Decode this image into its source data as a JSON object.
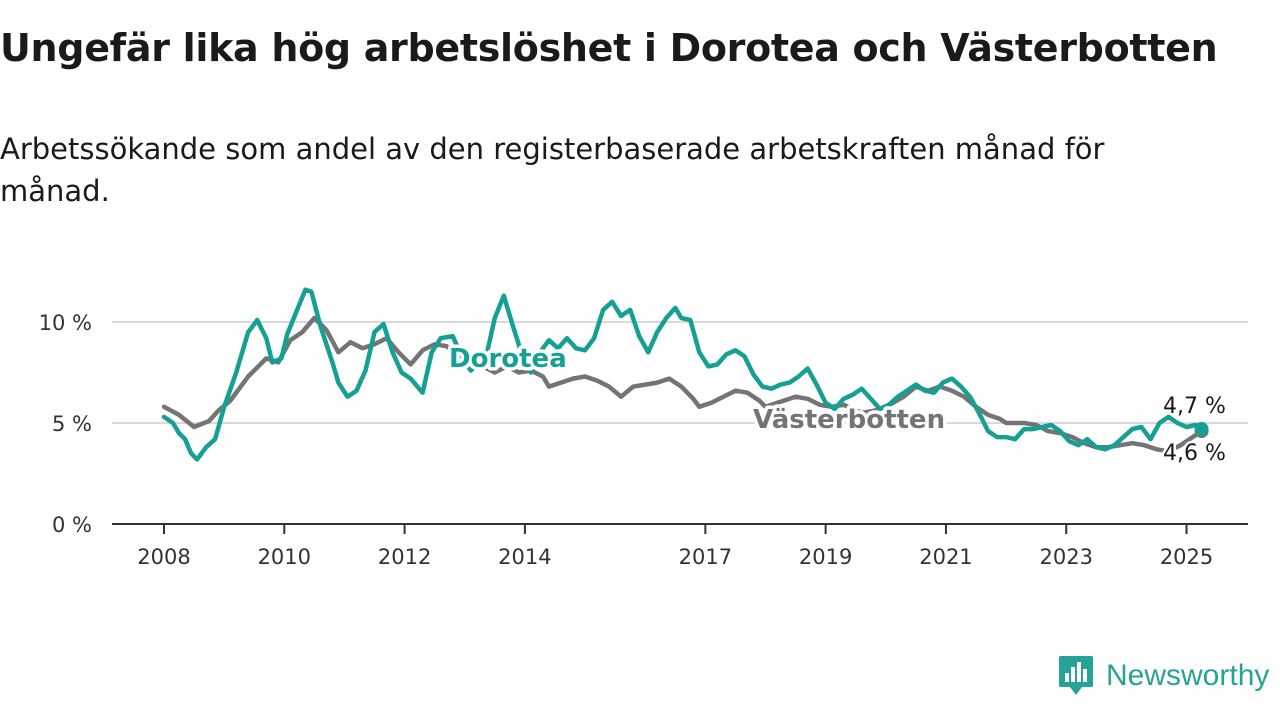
{
  "header": {
    "title": "Ungefär lika hög arbetslöshet i Dorotea och Västerbotten",
    "subtitle": "Arbetssökande som andel av den registerbaserade arbetskraften månad för månad."
  },
  "brand": {
    "name": "Newsworthy",
    "icon": "newsworthy-logo-icon",
    "color": "#24a396"
  },
  "chart_data": {
    "type": "line",
    "x_unit": "year",
    "xlim": [
      2007.9,
      2025.5
    ],
    "ylim": [
      0,
      10
    ],
    "grid": true,
    "y_ticks": [
      {
        "value": 0,
        "label": "0 %"
      },
      {
        "value": 5,
        "label": "5 %"
      },
      {
        "value": 10,
        "label": "10 %"
      }
    ],
    "x_ticks": [
      {
        "value": 2008,
        "label": "2008"
      },
      {
        "value": 2010,
        "label": "2010"
      },
      {
        "value": 2012,
        "label": "2012"
      },
      {
        "value": 2014,
        "label": "2014"
      },
      {
        "value": 2017,
        "label": "2017"
      },
      {
        "value": 2019,
        "label": "2019"
      },
      {
        "value": 2021,
        "label": "2021"
      },
      {
        "value": 2023,
        "label": "2023"
      },
      {
        "value": 2025,
        "label": "2025"
      }
    ],
    "series": [
      {
        "name": "Västerbotten",
        "color": "#747474",
        "end_label": "4,6 %",
        "points": [
          [
            2008.0,
            5.8
          ],
          [
            2008.25,
            5.4
          ],
          [
            2008.5,
            4.8
          ],
          [
            2008.75,
            5.1
          ],
          [
            2008.9,
            5.6
          ],
          [
            2009.1,
            6.1
          ],
          [
            2009.4,
            7.3
          ],
          [
            2009.7,
            8.2
          ],
          [
            2009.9,
            8.0
          ],
          [
            2010.1,
            9.1
          ],
          [
            2010.3,
            9.5
          ],
          [
            2010.5,
            10.2
          ],
          [
            2010.7,
            9.6
          ],
          [
            2010.9,
            8.5
          ],
          [
            2011.1,
            9.0
          ],
          [
            2011.3,
            8.7
          ],
          [
            2011.5,
            8.9
          ],
          [
            2011.7,
            9.2
          ],
          [
            2011.9,
            8.5
          ],
          [
            2012.1,
            7.9
          ],
          [
            2012.3,
            8.6
          ],
          [
            2012.5,
            8.9
          ],
          [
            2012.7,
            8.8
          ],
          [
            2012.9,
            8.3
          ],
          [
            2013.1,
            8.2
          ],
          [
            2013.3,
            7.8
          ],
          [
            2013.5,
            7.5
          ],
          [
            2013.7,
            7.8
          ],
          [
            2013.9,
            7.5
          ],
          [
            2014.1,
            7.6
          ],
          [
            2014.3,
            7.3
          ],
          [
            2014.4,
            6.8
          ],
          [
            2014.6,
            7.0
          ],
          [
            2014.8,
            7.2
          ],
          [
            2015.0,
            7.3
          ],
          [
            2015.2,
            7.1
          ],
          [
            2015.4,
            6.8
          ],
          [
            2015.6,
            6.3
          ],
          [
            2015.8,
            6.8
          ],
          [
            2016.0,
            6.9
          ],
          [
            2016.2,
            7.0
          ],
          [
            2016.4,
            7.2
          ],
          [
            2016.6,
            6.8
          ],
          [
            2016.8,
            6.2
          ],
          [
            2016.9,
            5.8
          ],
          [
            2017.1,
            6.0
          ],
          [
            2017.3,
            6.3
          ],
          [
            2017.5,
            6.6
          ],
          [
            2017.7,
            6.5
          ],
          [
            2017.9,
            6.1
          ],
          [
            2018.0,
            5.8
          ],
          [
            2018.2,
            6.0
          ],
          [
            2018.5,
            6.3
          ],
          [
            2018.7,
            6.2
          ],
          [
            2018.9,
            5.9
          ],
          [
            2019.1,
            5.8
          ],
          [
            2019.3,
            5.9
          ],
          [
            2019.6,
            5.5
          ],
          [
            2019.8,
            5.6
          ],
          [
            2020.0,
            5.8
          ],
          [
            2020.3,
            6.3
          ],
          [
            2020.5,
            6.8
          ],
          [
            2020.7,
            6.6
          ],
          [
            2020.9,
            6.8
          ],
          [
            2021.1,
            6.6
          ],
          [
            2021.3,
            6.3
          ],
          [
            2021.5,
            5.8
          ],
          [
            2021.7,
            5.4
          ],
          [
            2021.9,
            5.2
          ],
          [
            2022.0,
            5.0
          ],
          [
            2022.3,
            5.0
          ],
          [
            2022.5,
            4.9
          ],
          [
            2022.7,
            4.6
          ],
          [
            2022.9,
            4.5
          ],
          [
            2023.1,
            4.3
          ],
          [
            2023.3,
            4.0
          ],
          [
            2023.5,
            3.8
          ],
          [
            2023.7,
            3.8
          ],
          [
            2023.9,
            3.9
          ],
          [
            2024.1,
            4.0
          ],
          [
            2024.3,
            3.9
          ],
          [
            2024.5,
            3.7
          ],
          [
            2024.7,
            3.6
          ],
          [
            2024.9,
            3.9
          ],
          [
            2025.1,
            4.3
          ],
          [
            2025.25,
            4.6
          ]
        ]
      },
      {
        "name": "Dorotea",
        "color": "#14a093",
        "end_label": "4,7 %",
        "points": [
          [
            2008.0,
            5.3
          ],
          [
            2008.15,
            5.0
          ],
          [
            2008.25,
            4.5
          ],
          [
            2008.35,
            4.2
          ],
          [
            2008.45,
            3.5
          ],
          [
            2008.55,
            3.2
          ],
          [
            2008.7,
            3.8
          ],
          [
            2008.85,
            4.2
          ],
          [
            2009.0,
            5.8
          ],
          [
            2009.2,
            7.5
          ],
          [
            2009.4,
            9.5
          ],
          [
            2009.55,
            10.1
          ],
          [
            2009.7,
            9.2
          ],
          [
            2009.8,
            8.0
          ],
          [
            2009.95,
            8.2
          ],
          [
            2010.05,
            9.4
          ],
          [
            2010.2,
            10.5
          ],
          [
            2010.35,
            11.6
          ],
          [
            2010.45,
            11.5
          ],
          [
            2010.6,
            9.8
          ],
          [
            2010.8,
            8.0
          ],
          [
            2010.9,
            7.0
          ],
          [
            2011.05,
            6.3
          ],
          [
            2011.2,
            6.6
          ],
          [
            2011.35,
            7.6
          ],
          [
            2011.5,
            9.5
          ],
          [
            2011.65,
            9.9
          ],
          [
            2011.8,
            8.5
          ],
          [
            2011.95,
            7.5
          ],
          [
            2012.1,
            7.2
          ],
          [
            2012.3,
            6.5
          ],
          [
            2012.45,
            8.5
          ],
          [
            2012.6,
            9.2
          ],
          [
            2012.8,
            9.3
          ],
          [
            2012.95,
            8.3
          ],
          [
            2013.1,
            7.6
          ],
          [
            2013.25,
            8.0
          ],
          [
            2013.35,
            8.2
          ],
          [
            2013.5,
            10.2
          ],
          [
            2013.65,
            11.3
          ],
          [
            2013.8,
            9.8
          ],
          [
            2013.95,
            8.4
          ],
          [
            2014.1,
            7.5
          ],
          [
            2014.25,
            8.5
          ],
          [
            2014.4,
            9.1
          ],
          [
            2014.55,
            8.7
          ],
          [
            2014.7,
            9.2
          ],
          [
            2014.85,
            8.7
          ],
          [
            2015.0,
            8.6
          ],
          [
            2015.15,
            9.2
          ],
          [
            2015.3,
            10.6
          ],
          [
            2015.45,
            11.0
          ],
          [
            2015.6,
            10.3
          ],
          [
            2015.75,
            10.6
          ],
          [
            2015.9,
            9.3
          ],
          [
            2016.05,
            8.5
          ],
          [
            2016.2,
            9.5
          ],
          [
            2016.35,
            10.2
          ],
          [
            2016.5,
            10.7
          ],
          [
            2016.6,
            10.2
          ],
          [
            2016.75,
            10.1
          ],
          [
            2016.9,
            8.5
          ],
          [
            2017.05,
            7.8
          ],
          [
            2017.2,
            7.9
          ],
          [
            2017.35,
            8.4
          ],
          [
            2017.5,
            8.6
          ],
          [
            2017.65,
            8.3
          ],
          [
            2017.8,
            7.4
          ],
          [
            2017.95,
            6.8
          ],
          [
            2018.1,
            6.7
          ],
          [
            2018.25,
            6.9
          ],
          [
            2018.4,
            7.0
          ],
          [
            2018.55,
            7.3
          ],
          [
            2018.7,
            7.7
          ],
          [
            2018.85,
            6.9
          ],
          [
            2019.0,
            6.0
          ],
          [
            2019.15,
            5.7
          ],
          [
            2019.3,
            6.2
          ],
          [
            2019.45,
            6.4
          ],
          [
            2019.6,
            6.7
          ],
          [
            2019.75,
            6.2
          ],
          [
            2019.9,
            5.7
          ],
          [
            2020.05,
            5.9
          ],
          [
            2020.2,
            6.3
          ],
          [
            2020.35,
            6.6
          ],
          [
            2020.5,
            6.9
          ],
          [
            2020.65,
            6.6
          ],
          [
            2020.8,
            6.5
          ],
          [
            2020.95,
            7.0
          ],
          [
            2021.1,
            7.2
          ],
          [
            2021.25,
            6.8
          ],
          [
            2021.4,
            6.3
          ],
          [
            2021.55,
            5.5
          ],
          [
            2021.7,
            4.6
          ],
          [
            2021.85,
            4.3
          ],
          [
            2022.0,
            4.3
          ],
          [
            2022.15,
            4.2
          ],
          [
            2022.3,
            4.7
          ],
          [
            2022.45,
            4.7
          ],
          [
            2022.6,
            4.8
          ],
          [
            2022.75,
            4.9
          ],
          [
            2022.9,
            4.6
          ],
          [
            2023.05,
            4.1
          ],
          [
            2023.2,
            3.9
          ],
          [
            2023.35,
            4.2
          ],
          [
            2023.5,
            3.8
          ],
          [
            2023.65,
            3.7
          ],
          [
            2023.8,
            3.9
          ],
          [
            2023.95,
            4.3
          ],
          [
            2024.1,
            4.7
          ],
          [
            2024.25,
            4.8
          ],
          [
            2024.4,
            4.2
          ],
          [
            2024.55,
            5.0
          ],
          [
            2024.7,
            5.3
          ],
          [
            2024.85,
            5.0
          ],
          [
            2025.0,
            4.8
          ],
          [
            2025.15,
            4.9
          ],
          [
            2025.25,
            4.7
          ]
        ]
      }
    ]
  }
}
